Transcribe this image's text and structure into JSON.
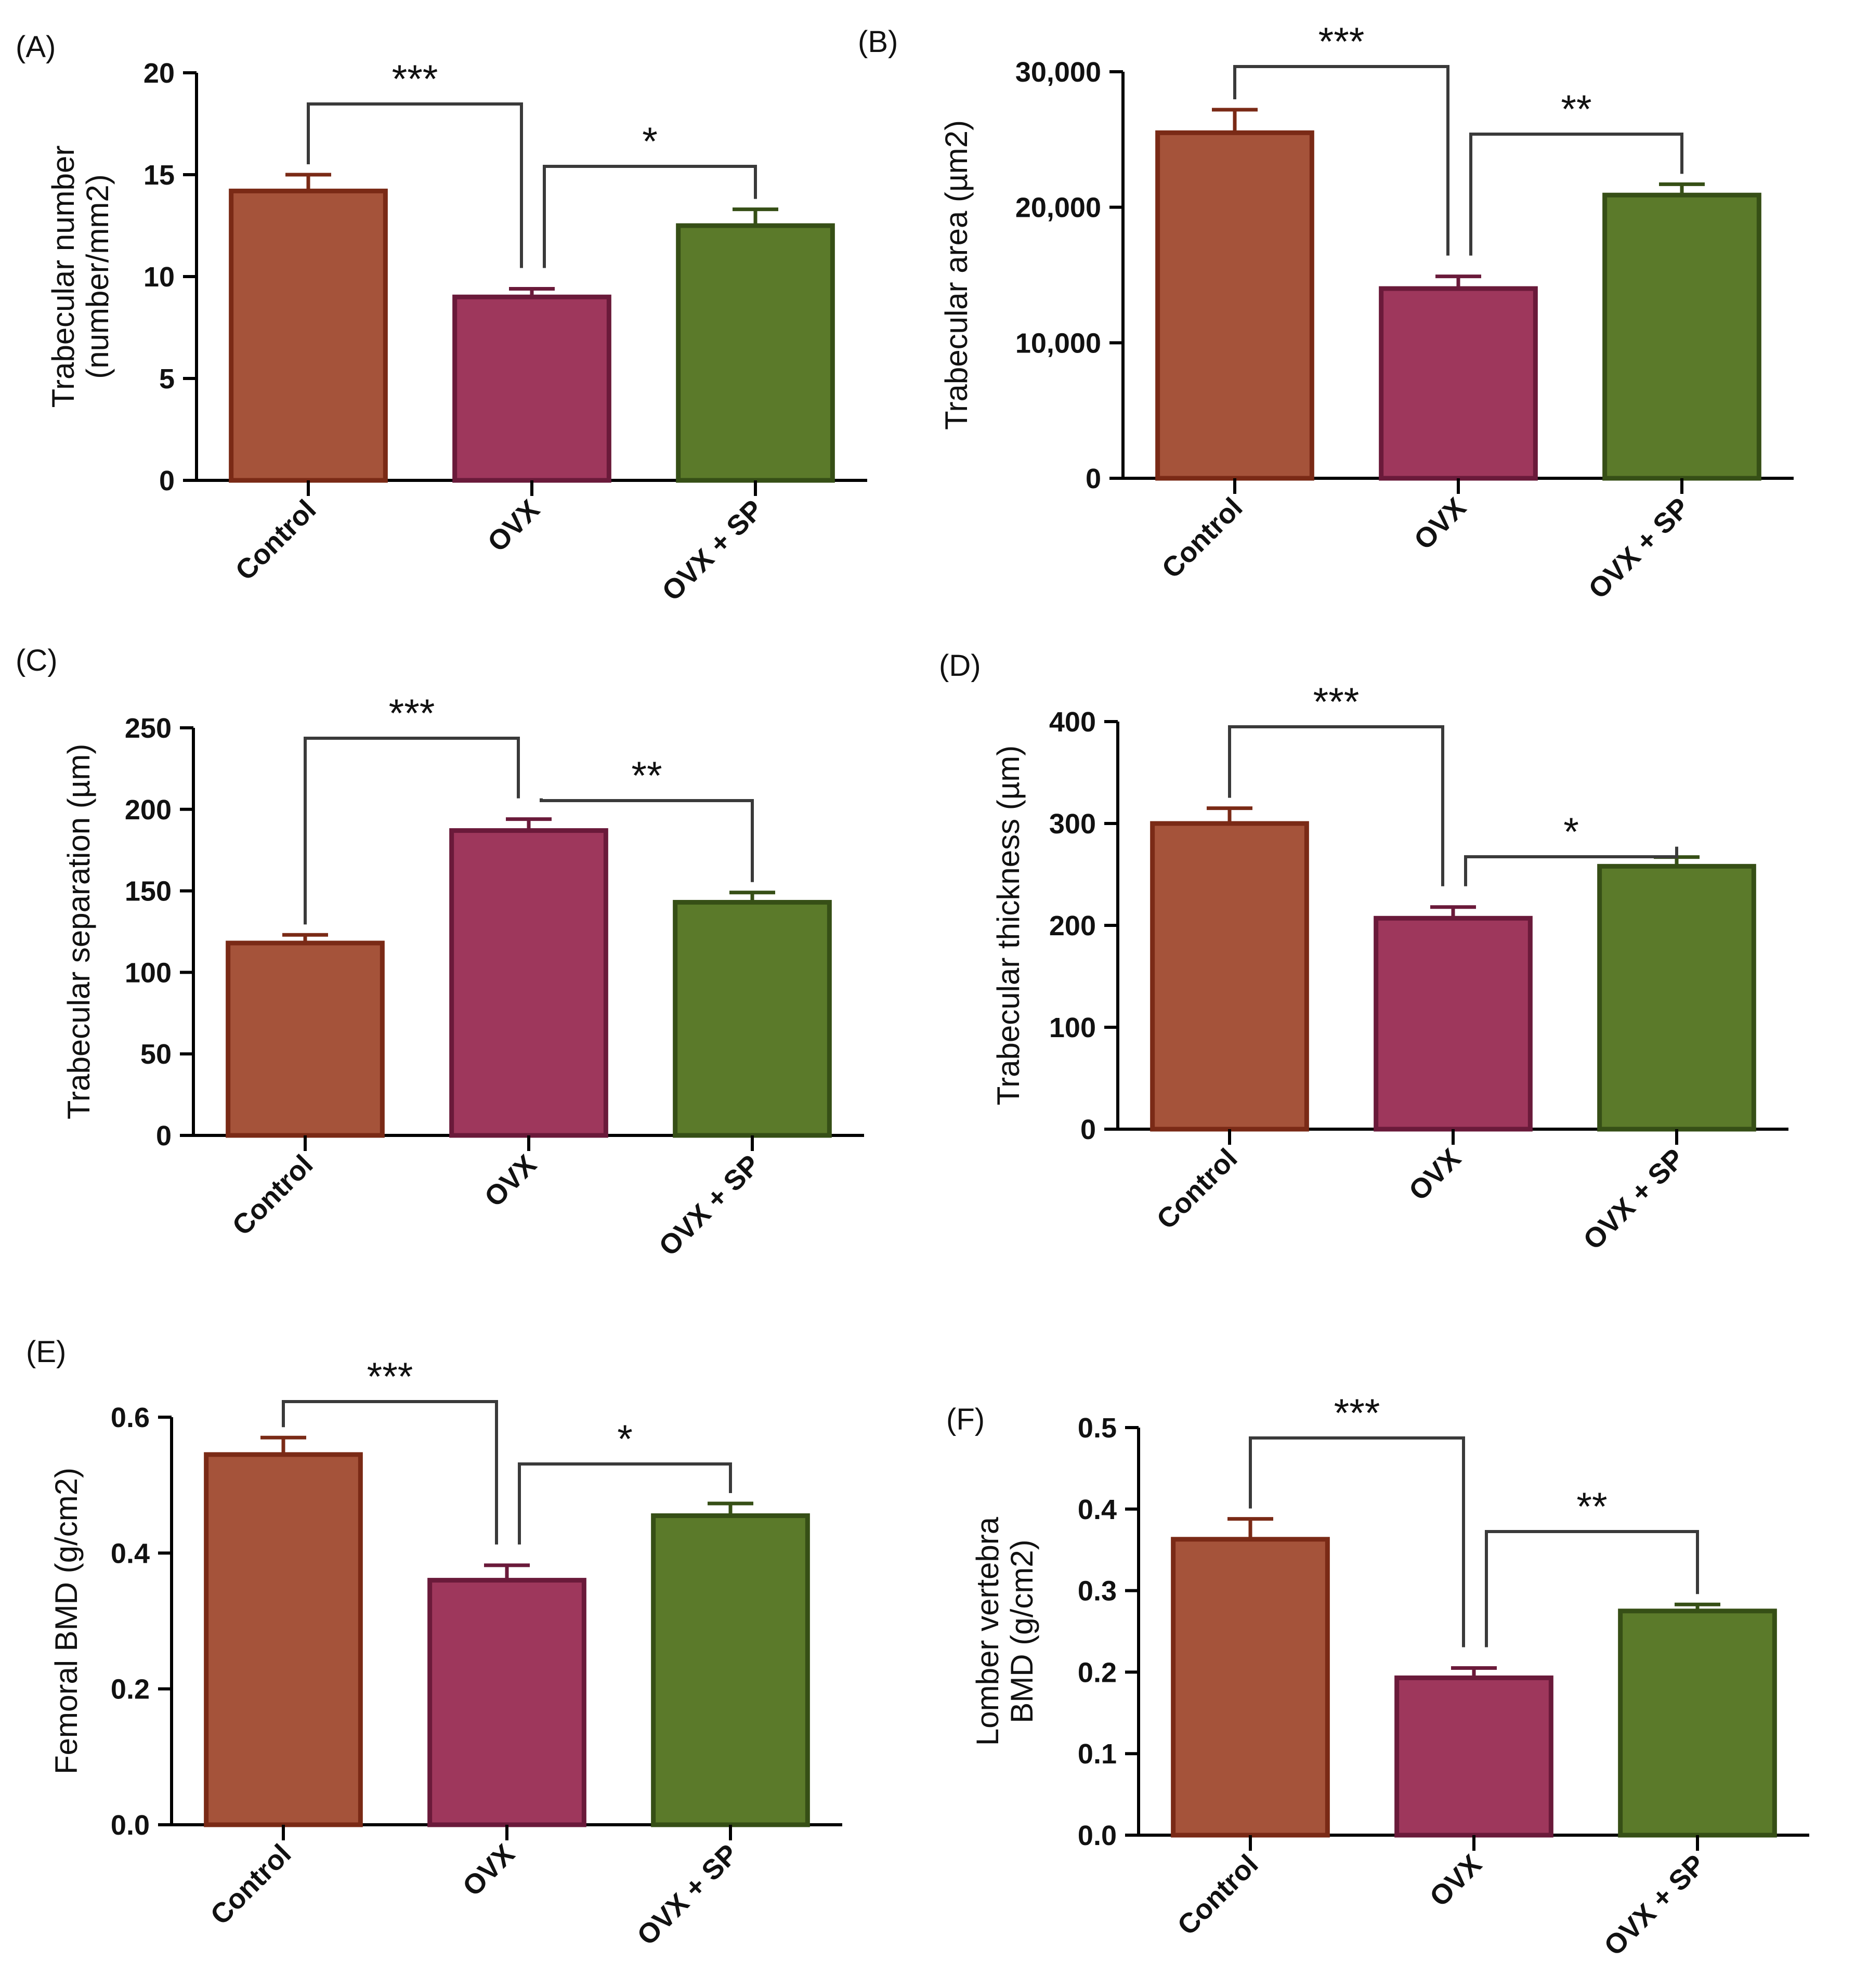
{
  "figure": {
    "colors": {
      "control_fill": "#a5533a",
      "control_edge": "#7a2a16",
      "ovx_fill": "#9e375c",
      "ovx_edge": "#6a1a3a",
      "ovxsp_fill": "#5b7a2a",
      "ovxsp_edge": "#364f16",
      "axis": "#000000",
      "bracket": "#3a3a3a"
    }
  },
  "chart_data": [
    {
      "panel": "(A)",
      "type": "bar",
      "categories": [
        "Control",
        "OVX",
        "OVX + SP"
      ],
      "values": [
        14.2,
        9.0,
        12.5
      ],
      "errors": [
        0.8,
        0.4,
        0.8
      ],
      "ylabel": [
        "Trabecular number",
        "(number/mm2)"
      ],
      "ylim": [
        0,
        20
      ],
      "yticks": [
        0,
        5,
        10,
        15,
        20
      ],
      "ytick_labels": [
        "0",
        "5",
        "10",
        "15",
        "20"
      ],
      "significance": [
        {
          "from": 0,
          "to": 1,
          "label": "***"
        },
        {
          "from": 1,
          "to": 2,
          "label": "*"
        }
      ]
    },
    {
      "panel": "(B)",
      "type": "bar",
      "categories": [
        "Control",
        "OVX",
        "OVX + SP"
      ],
      "values": [
        25500,
        14000,
        20900
      ],
      "errors": [
        1700,
        900,
        800
      ],
      "ylabel": [
        "Trabecular area (µm2)"
      ],
      "ylim": [
        0,
        30000
      ],
      "yticks": [
        0,
        10000,
        20000,
        30000
      ],
      "ytick_labels": [
        "0",
        "10,000",
        "20,000",
        "30,000"
      ],
      "significance": [
        {
          "from": 0,
          "to": 1,
          "label": "***"
        },
        {
          "from": 1,
          "to": 2,
          "label": "**"
        }
      ]
    },
    {
      "panel": "(C)",
      "type": "bar",
      "categories": [
        "Control",
        "OVX",
        "OVX + SP"
      ],
      "values": [
        118,
        187,
        143
      ],
      "errors": [
        5,
        7,
        6
      ],
      "ylabel": [
        "Trabecular separation (µm)"
      ],
      "ylim": [
        0,
        250
      ],
      "yticks": [
        0,
        50,
        100,
        150,
        200,
        250
      ],
      "ytick_labels": [
        "0",
        "50",
        "100",
        "150",
        "200",
        "250"
      ],
      "significance": [
        {
          "from": 0,
          "to": 1,
          "label": "***"
        },
        {
          "from": 1,
          "to": 2,
          "label": "**"
        }
      ]
    },
    {
      "panel": "(D)",
      "type": "bar",
      "categories": [
        "Control",
        "OVX",
        "OVX + SP"
      ],
      "values": [
        300,
        207,
        258
      ],
      "errors": [
        15,
        11,
        9
      ],
      "ylabel": [
        "Trabecular thickness (µm)"
      ],
      "ylim": [
        0,
        400
      ],
      "yticks": [
        0,
        100,
        200,
        300,
        400
      ],
      "ytick_labels": [
        "0",
        "100",
        "200",
        "300",
        "400"
      ],
      "significance": [
        {
          "from": 0,
          "to": 1,
          "label": "***"
        },
        {
          "from": 1,
          "to": 2,
          "label": "*"
        }
      ]
    },
    {
      "panel": "(E)",
      "type": "bar",
      "categories": [
        "Control",
        "OVX",
        "OVX + SP"
      ],
      "values": [
        0.545,
        0.36,
        0.455
      ],
      "errors": [
        0.025,
        0.022,
        0.018
      ],
      "ylabel": [
        "Femoral BMD (g/cm2)"
      ],
      "ylim": [
        0,
        0.6
      ],
      "yticks": [
        0,
        0.2,
        0.4,
        0.6
      ],
      "ytick_labels": [
        "0.0",
        "0.2",
        "0.4",
        "0.6"
      ],
      "significance": [
        {
          "from": 0,
          "to": 1,
          "label": "***"
        },
        {
          "from": 1,
          "to": 2,
          "label": "*"
        }
      ]
    },
    {
      "panel": "(F)",
      "type": "bar",
      "categories": [
        "Control",
        "OVX",
        "OVX + SP"
      ],
      "values": [
        0.363,
        0.193,
        0.275
      ],
      "errors": [
        0.025,
        0.012,
        0.008
      ],
      "ylabel": [
        "Lomber vertebra",
        "BMD (g/cm2)"
      ],
      "ylim": [
        0,
        0.5
      ],
      "yticks": [
        0,
        0.1,
        0.2,
        0.3,
        0.4,
        0.5
      ],
      "ytick_labels": [
        "0.0",
        "0.1",
        "0.2",
        "0.3",
        "0.4",
        "0.5"
      ],
      "significance": [
        {
          "from": 0,
          "to": 1,
          "label": "***"
        },
        {
          "from": 1,
          "to": 2,
          "label": "**"
        }
      ]
    }
  ]
}
